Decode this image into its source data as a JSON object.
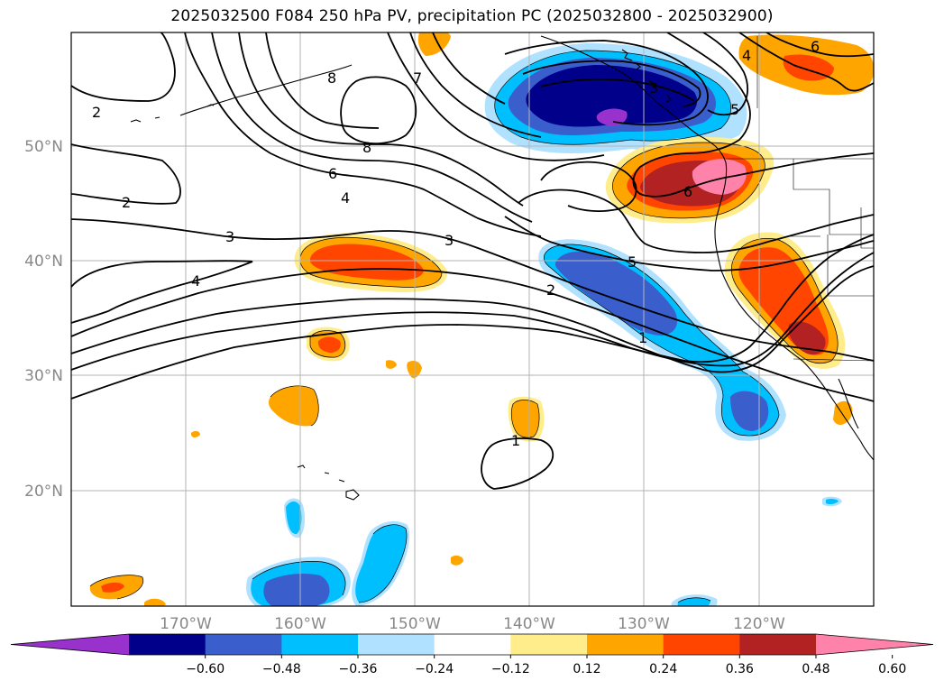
{
  "title": "2025032500 F084 250 hPa PV, precipitation PC (2025032800 - 2025032900)",
  "map": {
    "lon_range": [
      -180,
      -110
    ],
    "lat_range": [
      10,
      60
    ],
    "lat_ticks": [
      {
        "value": 50,
        "label": "50°N"
      },
      {
        "value": 40,
        "label": "40°N"
      },
      {
        "value": 30,
        "label": "30°N"
      },
      {
        "value": 20,
        "label": "20°N"
      }
    ],
    "lon_ticks": [
      {
        "value": -170,
        "label": "170°W"
      },
      {
        "value": -160,
        "label": "160°W"
      },
      {
        "value": -150,
        "label": "150°W"
      },
      {
        "value": -140,
        "label": "140°W"
      },
      {
        "value": -130,
        "label": "130°W"
      },
      {
        "value": -120,
        "label": "120°W"
      }
    ],
    "gridlines": true,
    "pv_contour_labels": [
      "8",
      "8",
      "7",
      "6",
      "4",
      "3",
      "2",
      "2",
      "4",
      "3",
      "5",
      "2",
      "1",
      "5",
      "1",
      "6",
      "4",
      "6",
      "3"
    ]
  },
  "colorbar": {
    "colors": [
      "#9932cc",
      "#00008b",
      "#3a5fcd",
      "#00bfff",
      "#b0e2ff",
      "#ffffff",
      "#ffec8b",
      "#ffa500",
      "#ff4500",
      "#b22222",
      "#ff82ab"
    ],
    "tick_labels": [
      "−0.60",
      "−0.48",
      "−0.36",
      "−0.24",
      "−0.12",
      "0.12",
      "0.24",
      "0.36",
      "0.48",
      "0.60"
    ],
    "extend": "both"
  }
}
